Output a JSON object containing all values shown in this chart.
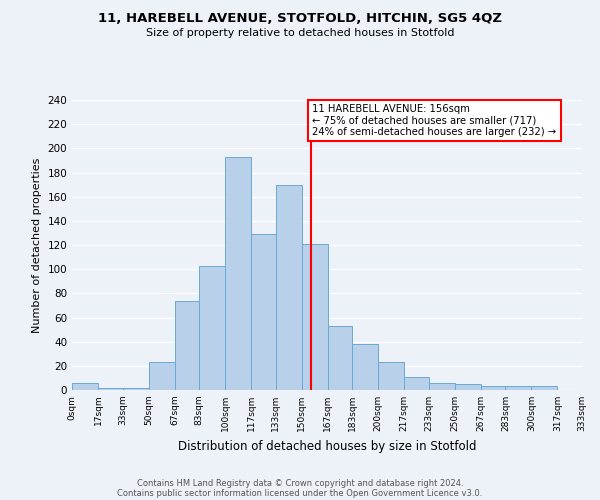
{
  "title": "11, HAREBELL AVENUE, STOTFOLD, HITCHIN, SG5 4QZ",
  "subtitle": "Size of property relative to detached houses in Stotfold",
  "xlabel": "Distribution of detached houses by size in Stotfold",
  "ylabel": "Number of detached properties",
  "bin_edges": [
    0,
    17,
    33,
    50,
    67,
    83,
    100,
    117,
    133,
    150,
    167,
    183,
    200,
    217,
    233,
    250,
    267,
    283,
    300,
    317,
    333
  ],
  "counts": [
    6,
    2,
    2,
    23,
    74,
    103,
    193,
    129,
    170,
    121,
    53,
    38,
    23,
    11,
    6,
    5,
    3,
    3,
    3,
    0
  ],
  "bar_color": "#b8d0ea",
  "bar_edge_color": "#6aaad4",
  "property_size": 156,
  "vline_color": "red",
  "annotation_line1": "11 HAREBELL AVENUE: 156sqm",
  "annotation_line2": "← 75% of detached houses are smaller (717)",
  "annotation_line3": "24% of semi-detached houses are larger (232) →",
  "annotation_box_color": "white",
  "annotation_box_edge_color": "red",
  "tick_labels": [
    "0sqm",
    "17sqm",
    "33sqm",
    "50sqm",
    "67sqm",
    "83sqm",
    "100sqm",
    "117sqm",
    "133sqm",
    "150sqm",
    "167sqm",
    "183sqm",
    "200sqm",
    "217sqm",
    "233sqm",
    "250sqm",
    "267sqm",
    "283sqm",
    "300sqm",
    "317sqm",
    "333sqm"
  ],
  "ylim": [
    0,
    240
  ],
  "yticks": [
    0,
    20,
    40,
    60,
    80,
    100,
    120,
    140,
    160,
    180,
    200,
    220,
    240
  ],
  "footer_line1": "Contains HM Land Registry data © Crown copyright and database right 2024.",
  "footer_line2": "Contains public sector information licensed under the Open Government Licence v3.0.",
  "background_color": "#edf2f9",
  "grid_color": "white",
  "title_fontsize": 9.5,
  "subtitle_fontsize": 8,
  "ylabel_fontsize": 8,
  "xlabel_fontsize": 8.5
}
